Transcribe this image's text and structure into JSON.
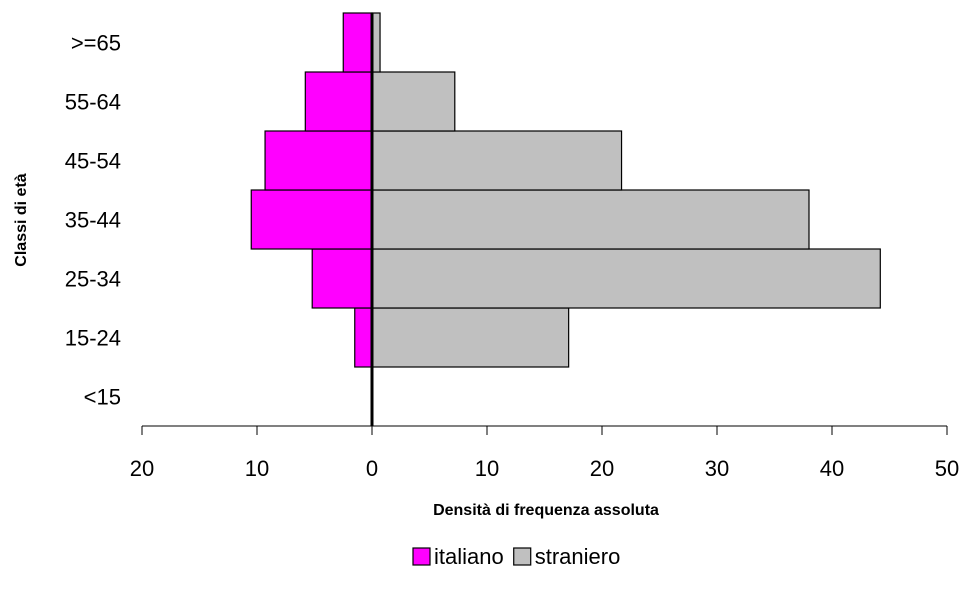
{
  "chart_data": {
    "type": "bar",
    "orientation": "horizontal-population-pyramid",
    "categories": [
      "<15",
      "15-24",
      "25-34",
      "35-44",
      "45-54",
      "55-64",
      ">=65"
    ],
    "series": [
      {
        "name": "italiano",
        "values": [
          0,
          1.5,
          5.2,
          10.5,
          9.3,
          5.8,
          2.5
        ],
        "color": "#ff00ff",
        "direction": "left"
      },
      {
        "name": "straniero",
        "values": [
          0,
          17.1,
          44.2,
          38.0,
          21.7,
          7.2,
          0.7
        ],
        "color": "#c0c0c0",
        "direction": "right"
      }
    ],
    "xlabel": "Densità di frequenza assoluta",
    "ylabel": "Classi di età",
    "x_ticks": [
      {
        "label": "20",
        "value": -20,
        "color": "#ff0000"
      },
      {
        "label": "10",
        "value": -10,
        "color": "#ff0000"
      },
      {
        "label": "0",
        "value": 0,
        "color": "#000000"
      },
      {
        "label": "10",
        "value": 10,
        "color": "#000000"
      },
      {
        "label": "20",
        "value": 20,
        "color": "#000000"
      },
      {
        "label": "30",
        "value": 30,
        "color": "#000000"
      },
      {
        "label": "40",
        "value": 40,
        "color": "#000000"
      },
      {
        "label": "50",
        "value": 50,
        "color": "#000000"
      }
    ],
    "xlim": [
      -20,
      50
    ],
    "grid": false,
    "legend_position": "bottom"
  }
}
